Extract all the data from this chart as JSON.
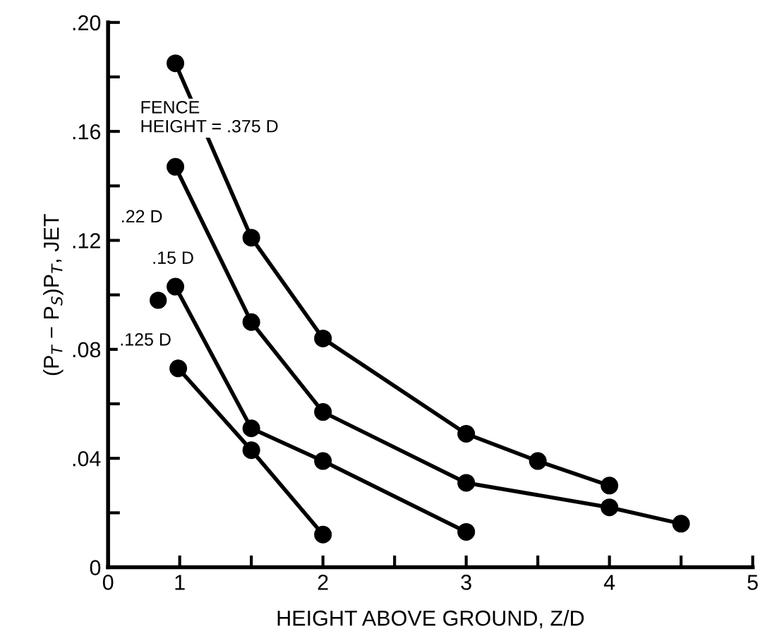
{
  "chart_data": {
    "type": "line",
    "xlabel": "HEIGHT ABOVE GROUND, Z/D",
    "ylabel": "(P$_{T}$ − P$_{S}$)P$_{T}$, JET",
    "xlim": [
      0.5,
      5
    ],
    "xticks": [
      {
        "value": 0.5,
        "label": "0"
      },
      1,
      {
        "value": 1.5,
        "label": null
      },
      2,
      {
        "value": 2.5,
        "label": null
      },
      3,
      {
        "value": 3.5,
        "label": null
      },
      4,
      {
        "value": 4.5,
        "label": null
      },
      5
    ],
    "ylim": [
      0,
      0.2
    ],
    "yticks": [
      {
        "value": 0,
        "label": "0"
      },
      {
        "value": 0.02,
        "label": null
      },
      {
        "value": 0.04,
        "label": ".04"
      },
      {
        "value": 0.06,
        "label": null
      },
      {
        "value": 0.08,
        "label": ".08"
      },
      {
        "value": 0.1,
        "label": null
      },
      {
        "value": 0.12,
        "label": ".12"
      },
      {
        "value": 0.14,
        "label": null
      },
      {
        "value": 0.16,
        "label": ".16"
      },
      {
        "value": 0.18,
        "label": null
      },
      {
        "value": 0.2,
        "label": ".20"
      }
    ],
    "marker": "circle",
    "line_style": "solid",
    "grid": false,
    "legend": false,
    "series": [
      {
        "name": "FENCE\nHEIGHT = .375 D",
        "color": "#000000",
        "x": [
          0.97,
          1.5,
          2,
          3,
          3.5,
          4
        ],
        "values": [
          0.185,
          0.121,
          0.084,
          0.049,
          0.039,
          0.03
        ]
      },
      {
        "name": ".22 D",
        "color": "#000000",
        "x": [
          0.97,
          1.5,
          2,
          3,
          4,
          4.5
        ],
        "values": [
          0.147,
          0.09,
          0.057,
          0.031,
          0.022,
          0.016
        ]
      },
      {
        "name": ".15 D",
        "color": "#000000",
        "x": [
          0.97,
          1.5,
          2,
          3
        ],
        "values": [
          0.103,
          0.051,
          0.039,
          0.013
        ]
      },
      {
        "name": ".125 D",
        "color": "#000000",
        "x": [
          0.99,
          1.5,
          2
        ],
        "values": [
          0.073,
          0.043,
          0.012
        ]
      },
      {
        "type": "scatter",
        "color": "#000000",
        "x": [
          0.85
        ],
        "values": [
          0.098
        ]
      }
    ]
  }
}
